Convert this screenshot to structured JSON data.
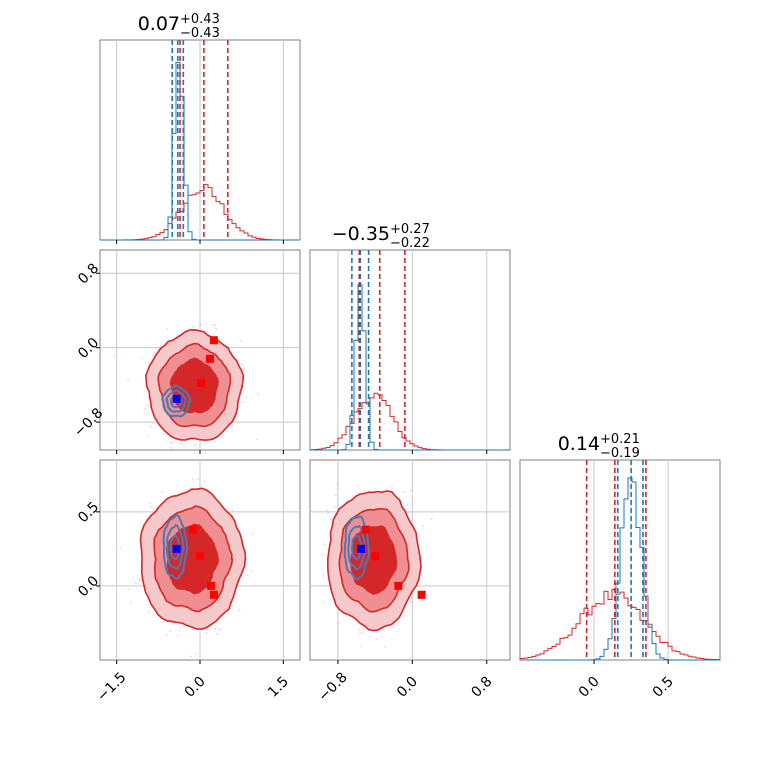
{
  "chart_data": {
    "type": "corner",
    "grid": true,
    "colors": {
      "red": "#d62728",
      "blue": "#1f77b4",
      "red_marker": "#ff0000",
      "blue_marker": "#0000ff"
    },
    "parameters": [
      {
        "title": {
          "value": "0.07",
          "upper": "+0.43",
          "lower": "−0.43"
        },
        "range": [
          -1.8,
          1.8
        ],
        "ticks": [
          -1.5,
          0.0,
          1.5
        ],
        "tick_labels": [
          "−1.5",
          "0.0",
          "1.5"
        ],
        "red_quantiles": [
          -0.36,
          0.07,
          0.5
        ],
        "blue_quantiles": [
          -0.5,
          -0.4,
          -0.3
        ],
        "blue_hist": {
          "mean": -0.38,
          "sd": 0.08,
          "peak": 1.0
        },
        "red_hist": {
          "mean": 0.05,
          "sd": 0.38,
          "peak": 0.28
        }
      },
      {
        "title": {
          "value": "−0.35",
          "upper": "+0.27",
          "lower": "−0.22"
        },
        "range": [
          -1.1,
          1.05
        ],
        "ticks": [
          -0.8,
          0.0,
          0.8
        ],
        "tick_labels": [
          "−0.8",
          "0.0",
          "0.8"
        ],
        "red_quantiles": [
          -0.57,
          -0.35,
          -0.08
        ],
        "blue_quantiles": [
          -0.65,
          -0.56,
          -0.47
        ],
        "blue_hist": {
          "mean": -0.56,
          "sd": 0.05,
          "peak": 1.0
        },
        "red_hist": {
          "mean": -0.42,
          "sd": 0.2,
          "peak": 0.3
        }
      },
      {
        "title": {
          "value": "0.14",
          "upper": "+0.21",
          "lower": "−0.19"
        },
        "range": [
          -0.5,
          0.85
        ],
        "ticks": [
          0.0,
          0.5
        ],
        "tick_labels": [
          "0.0",
          "0.5"
        ],
        "red_quantiles": [
          -0.05,
          0.14,
          0.35
        ],
        "blue_quantiles": [
          0.16,
          0.25,
          0.33
        ],
        "blue_hist": {
          "mean": 0.25,
          "sd": 0.07,
          "peak": 1.0
        },
        "red_hist": {
          "mean": 0.12,
          "sd": 0.22,
          "peak": 0.35
        }
      }
    ],
    "pairs": [
      {
        "x_param": 0,
        "y_param": 1,
        "red_center": [
          -0.1,
          -0.42
        ],
        "red_radii": [
          0.55,
          0.38
        ],
        "blue_center": [
          -0.43,
          -0.58
        ],
        "blue_radii": [
          0.15,
          0.1
        ],
        "red_markers": [
          [
            0.25,
            0.08
          ],
          [
            0.18,
            -0.12
          ],
          [
            0.02,
            -0.38
          ]
        ],
        "blue_marker": [
          -0.42,
          -0.55
        ],
        "y_ticks": [
          0.8,
          0.0,
          -0.8
        ],
        "y_tick_labels": [
          "0.8",
          "0.0",
          "−0.8"
        ]
      },
      {
        "x_param": 0,
        "y_param": 2,
        "red_center": [
          -0.15,
          0.18
        ],
        "red_radii": [
          0.6,
          0.3
        ],
        "blue_center": [
          -0.45,
          0.26
        ],
        "blue_radii": [
          0.13,
          0.13
        ],
        "red_markers": [
          [
            -0.12,
            0.38
          ],
          [
            0.0,
            0.2
          ],
          [
            0.2,
            0.0
          ],
          [
            0.25,
            -0.06
          ]
        ],
        "blue_marker": [
          -0.42,
          0.25
        ],
        "y_ticks": [
          0.5,
          0.0
        ],
        "y_tick_labels": [
          "0.5",
          "0.0"
        ]
      },
      {
        "x_param": 1,
        "y_param": 2,
        "red_center": [
          -0.42,
          0.18
        ],
        "red_radii": [
          0.32,
          0.3
        ],
        "blue_center": [
          -0.6,
          0.26
        ],
        "blue_radii": [
          0.08,
          0.13
        ],
        "red_markers": [
          [
            -0.5,
            0.38
          ],
          [
            -0.4,
            0.2
          ],
          [
            -0.15,
            0.0
          ],
          [
            0.1,
            -0.06
          ]
        ],
        "blue_marker": [
          -0.55,
          0.25
        ],
        "y_ticks": [],
        "y_tick_labels": []
      }
    ]
  }
}
